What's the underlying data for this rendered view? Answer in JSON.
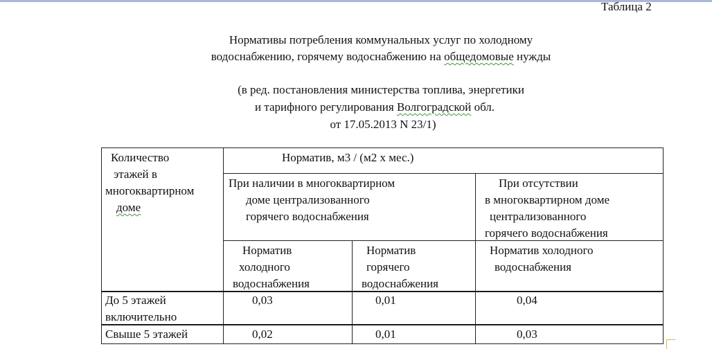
{
  "table_label": "Таблица 2",
  "title": {
    "line1": "Нормативы потребления коммунальных услуг по холодному",
    "line2_pre": "водоснабжению, горячему водоснабжению на ",
    "line2_sq": "общедомовые",
    "line2_post": " нужды"
  },
  "subtitle": {
    "line1": "(в ред. постановления министерства топлива, энергетики",
    "line2_pre": "и тарифного регулирования ",
    "line2_sq": "Волгоградской",
    "line2_post": " обл.",
    "line3": "от 17.05.2013 N 23/1)"
  },
  "table": {
    "floors_header": [
      "Количество",
      "этажей в",
      "многоквартирном",
      "доме"
    ],
    "norm_header": "Норматив, м3 / (м2 х мес.)",
    "with_hot": [
      "При наличии в многоквартирном",
      "доме централизованного",
      "горячего водоснабжения"
    ],
    "without_hot": [
      "При отсутствии",
      "в многоквартирном доме",
      "централизованного",
      "горячего водоснабжения"
    ],
    "col_cold": [
      "Норматив",
      "холодного",
      "водоснабжения"
    ],
    "col_hot": [
      "Норматив",
      "горячего",
      "водоснабжения"
    ],
    "col_cold_only": [
      "Норматив холодного",
      "водоснабжения"
    ],
    "rows": [
      {
        "floors": [
          "До 5 этажей",
          "включительно"
        ],
        "cold": "0,03",
        "hot": "0,01",
        "cold_only": "0,04"
      },
      {
        "floors": [
          "Свыше 5 этажей"
        ],
        "cold": "0,02",
        "hot": "0,01",
        "cold_only": "0,03"
      }
    ]
  }
}
